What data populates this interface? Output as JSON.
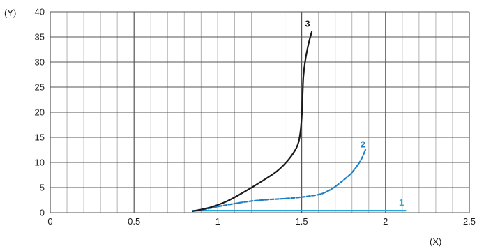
{
  "chart_data": {
    "type": "line",
    "xlabel": "(X)",
    "ylabel": "(Y)",
    "xlim": [
      0,
      2.5
    ],
    "ylim": [
      0,
      40
    ],
    "x_ticks": [
      0,
      0.5,
      1,
      1.5,
      2,
      2.5
    ],
    "x_tick_labels": [
      "0",
      "0.5",
      "1",
      "1.5",
      "2",
      "2.5"
    ],
    "y_ticks": [
      0,
      5,
      10,
      15,
      20,
      25,
      30,
      35,
      40
    ],
    "y_tick_labels": [
      "0",
      "5",
      "10",
      "15",
      "20",
      "25",
      "30",
      "35",
      "40"
    ],
    "x_grid_step": 0.1,
    "y_grid_step": 5,
    "grid": true,
    "grid_major_color": "#555555",
    "grid_minor_color": "#b3b3b3",
    "series": [
      {
        "name": "1",
        "color": "#29a6d9",
        "style": "solid",
        "x": [
          0.85,
          2.12
        ],
        "y": [
          0.4,
          0.4
        ],
        "label_at": [
          2.08,
          1.4
        ]
      },
      {
        "name": "2",
        "color": "#1f7fc4",
        "style": "dashed",
        "x": [
          0.85,
          0.9,
          1.0,
          1.1,
          1.2,
          1.3,
          1.4,
          1.5,
          1.6,
          1.65,
          1.7,
          1.75,
          1.8,
          1.85,
          1.88
        ],
        "y": [
          0.3,
          0.5,
          1.2,
          1.8,
          2.3,
          2.6,
          2.8,
          3.1,
          3.6,
          4.2,
          5.2,
          6.5,
          8.0,
          10.3,
          12.5
        ],
        "label_at": [
          1.85,
          13.0
        ]
      },
      {
        "name": "3",
        "color": "#1a1a1a",
        "style": "solid",
        "x": [
          0.85,
          0.95,
          1.05,
          1.15,
          1.25,
          1.35,
          1.42,
          1.47,
          1.49,
          1.5,
          1.505,
          1.51,
          1.52,
          1.54,
          1.56
        ],
        "y": [
          0.3,
          1.0,
          2.2,
          4.0,
          6.0,
          8.2,
          10.5,
          13.0,
          15.5,
          19.0,
          23.0,
          27.0,
          30.0,
          33.5,
          36.0
        ],
        "label_at": [
          1.52,
          37.0
        ]
      }
    ]
  }
}
